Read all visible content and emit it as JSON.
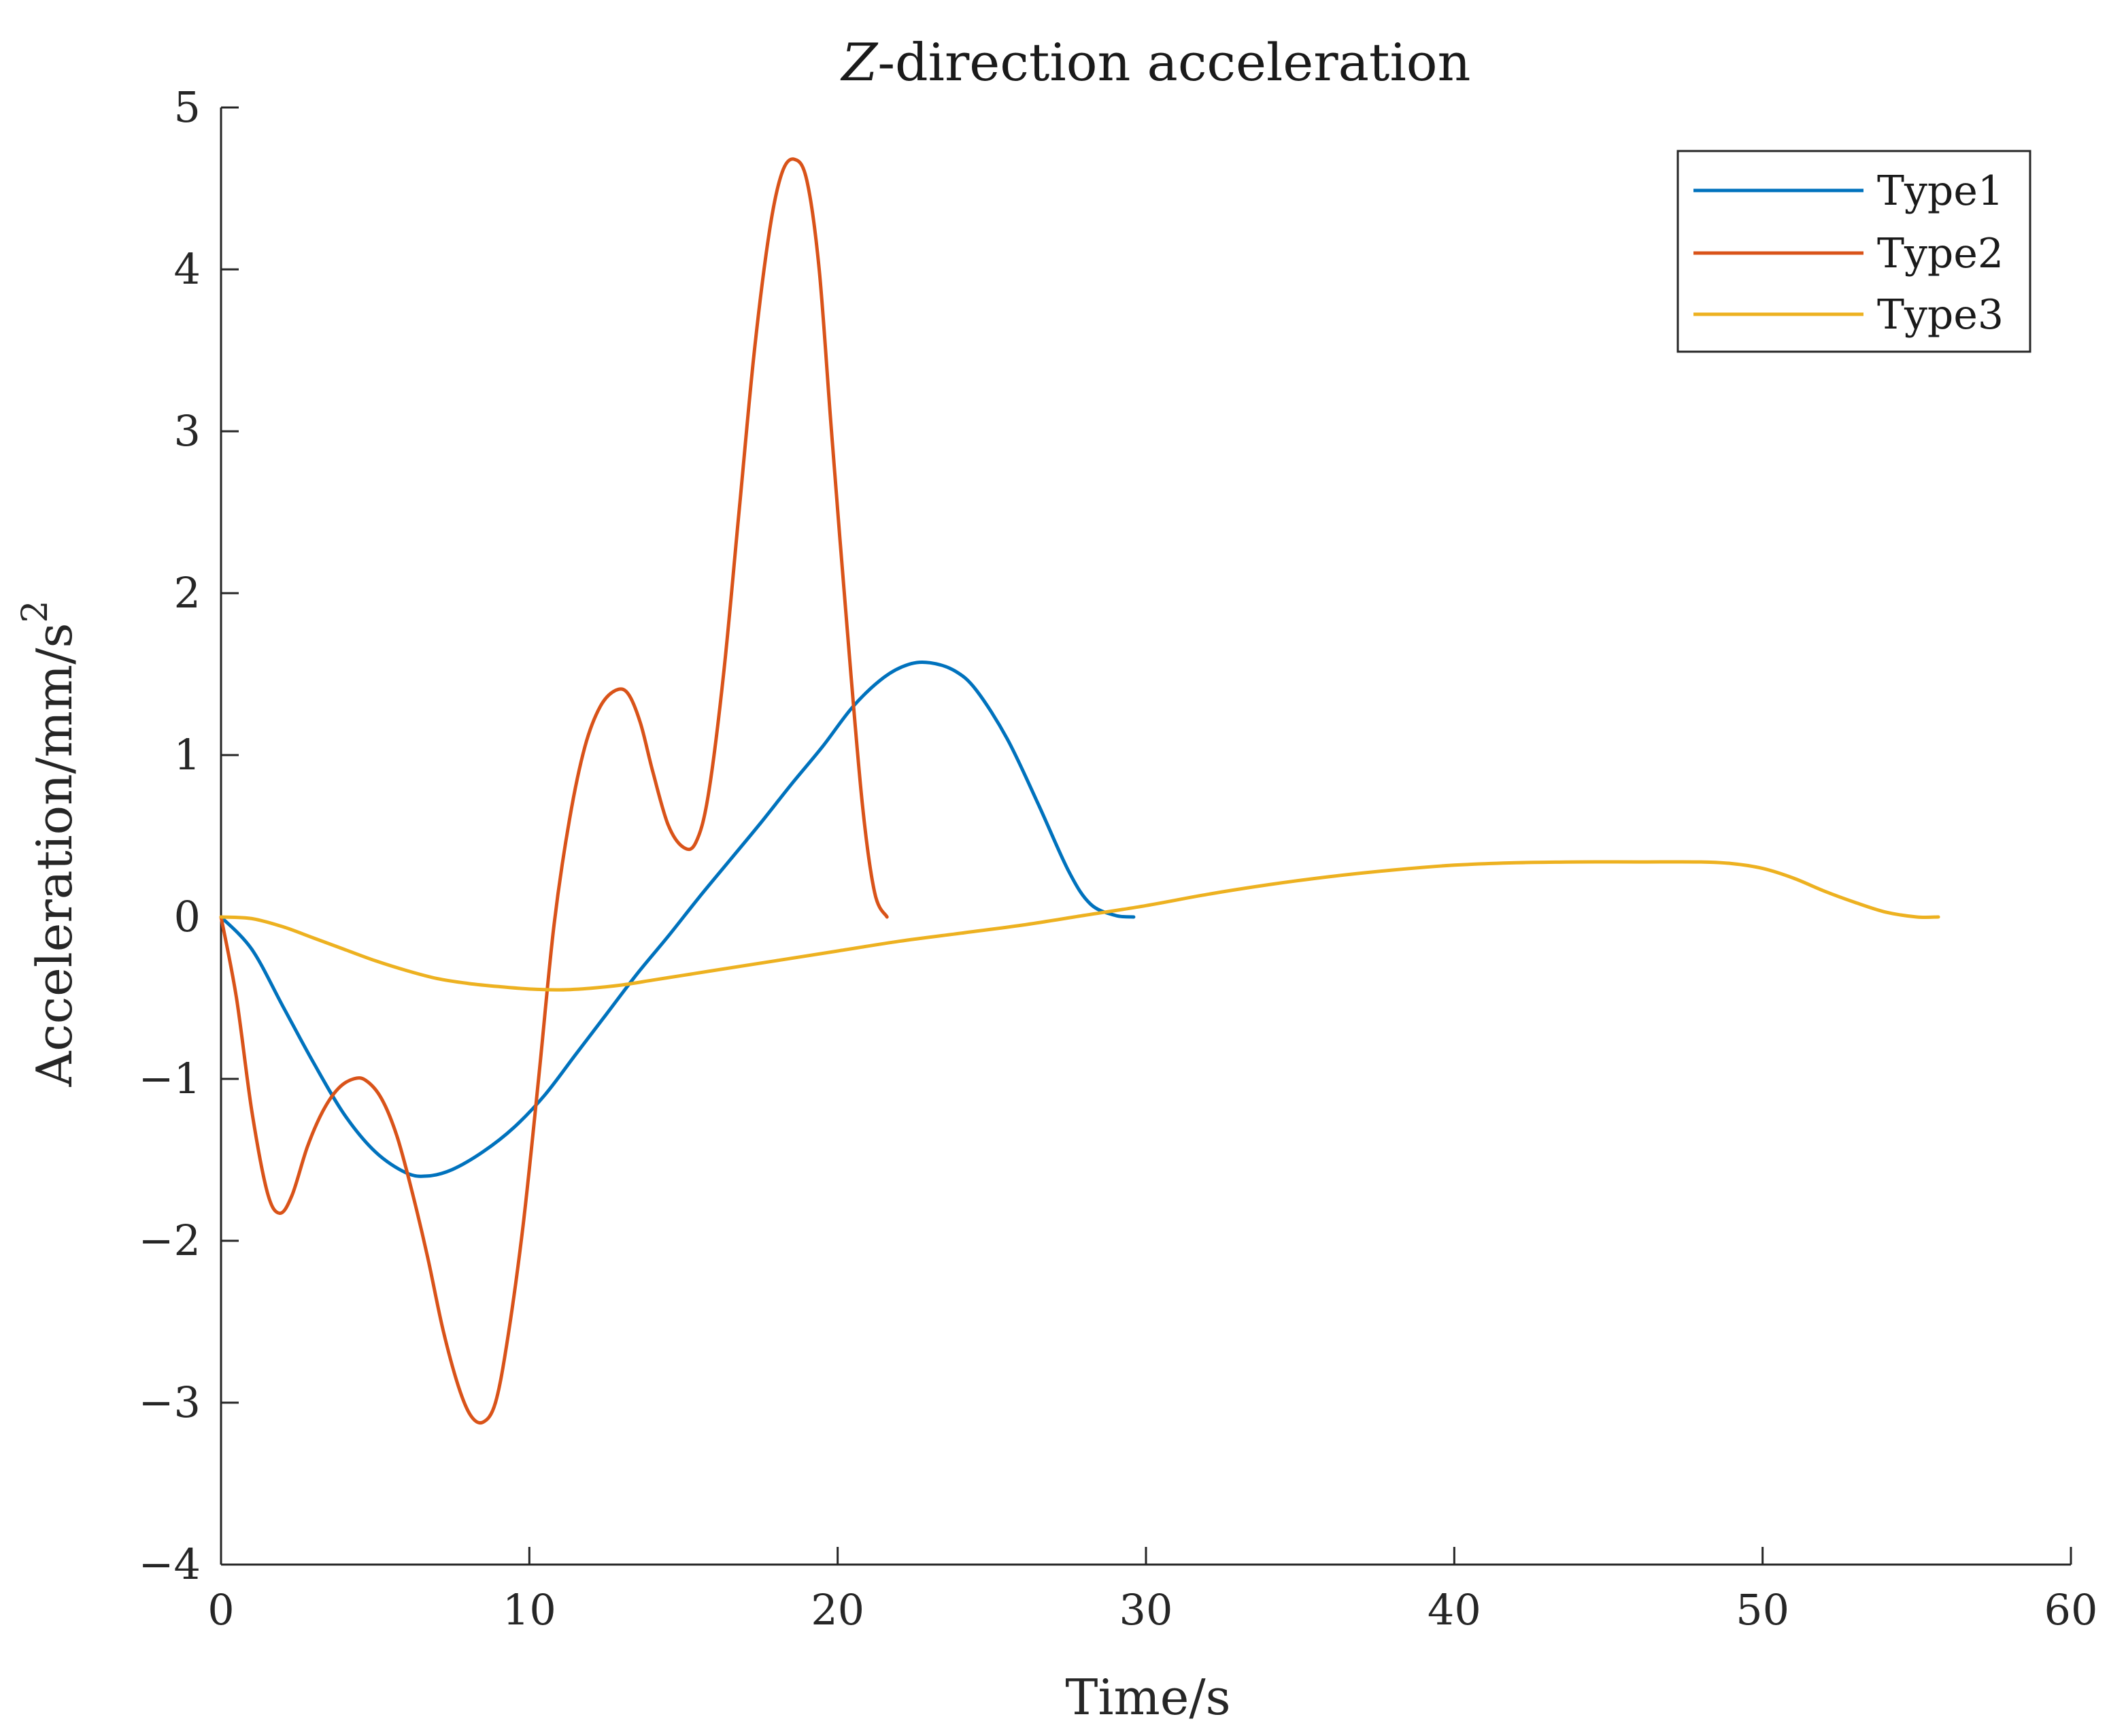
{
  "chart_data": {
    "type": "line",
    "title": "Z-direction acceleration",
    "title_italic_part": "Z",
    "title_rest": "-direction acceleration",
    "xlabel": "Time/s",
    "ylabel": "Acceleration/mm/s",
    "ylabel_superscript": "2",
    "xlim": [
      0,
      60
    ],
    "ylim": [
      -4,
      5
    ],
    "xticks": [
      0,
      10,
      20,
      30,
      40,
      50,
      60
    ],
    "yticks": [
      -4,
      -3,
      -2,
      -1,
      0,
      1,
      2,
      3,
      4,
      5
    ],
    "xtick_labels": [
      "0",
      "10",
      "20",
      "30",
      "40",
      "50",
      "60"
    ],
    "ytick_labels": [
      "−4",
      "−3",
      "−2",
      "−1",
      "0",
      "1",
      "2",
      "3",
      "4",
      "5"
    ],
    "grid": false,
    "legend_position": "top-right",
    "series": [
      {
        "name": "Type1",
        "color": "#0072BD",
        "x": [
          0,
          1,
          2,
          3,
          4,
          5,
          6,
          6.7,
          7.5,
          8.5,
          9.5,
          10.5,
          11.5,
          12.5,
          13.5,
          14.5,
          15.5,
          16.5,
          17.5,
          18.5,
          19.5,
          20.5,
          21.5,
          22.3,
          23,
          23.8,
          24.5,
          25.5,
          26.5,
          27.5,
          28.2,
          29,
          29.6
        ],
        "y": [
          0,
          -0.2,
          -0.55,
          -0.9,
          -1.22,
          -1.45,
          -1.58,
          -1.6,
          -1.56,
          -1.45,
          -1.3,
          -1.1,
          -0.85,
          -0.6,
          -0.35,
          -0.12,
          0.12,
          0.35,
          0.58,
          0.82,
          1.05,
          1.3,
          1.48,
          1.56,
          1.57,
          1.52,
          1.4,
          1.1,
          0.7,
          0.28,
          0.08,
          0.01,
          0
        ]
      },
      {
        "name": "Type2",
        "color": "#D95319",
        "x": [
          0,
          0.5,
          1,
          1.5,
          1.9,
          2.3,
          2.8,
          3.3,
          3.8,
          4.3,
          4.7,
          5.2,
          5.7,
          6.2,
          6.7,
          7.2,
          7.7,
          8.1,
          8.5,
          8.9,
          9.3,
          9.8,
          10.3,
          10.8,
          11.3,
          11.8,
          12.3,
          12.8,
          13.2,
          13.6,
          14,
          14.5,
          15,
          15.4,
          15.8,
          16.3,
          16.8,
          17.3,
          17.8,
          18.2,
          18.6,
          19,
          19.4,
          19.8,
          20.3,
          20.8,
          21.2,
          21.6
        ],
        "y": [
          0,
          -0.5,
          -1.2,
          -1.7,
          -1.83,
          -1.72,
          -1.42,
          -1.2,
          -1.06,
          -1.0,
          -1.01,
          -1.12,
          -1.35,
          -1.7,
          -2.1,
          -2.55,
          -2.9,
          -3.08,
          -3.12,
          -3.0,
          -2.6,
          -1.9,
          -1.0,
          -0.05,
          0.6,
          1.05,
          1.3,
          1.4,
          1.38,
          1.2,
          0.9,
          0.57,
          0.43,
          0.46,
          0.75,
          1.5,
          2.5,
          3.5,
          4.25,
          4.6,
          4.68,
          4.55,
          4.0,
          3.0,
          1.8,
          0.7,
          0.15,
          0
        ]
      },
      {
        "name": "Type3",
        "color": "#EDB120",
        "x": [
          0,
          1,
          2,
          3,
          4,
          5,
          6,
          7,
          8,
          9,
          10,
          11,
          12,
          13,
          14,
          15,
          16,
          18,
          20,
          22,
          24,
          26,
          28,
          30,
          32,
          34,
          36,
          38,
          40,
          42,
          44,
          46,
          48,
          49,
          50,
          51,
          52,
          53,
          54,
          55,
          55.7
        ],
        "y": [
          0,
          -0.01,
          -0.06,
          -0.13,
          -0.2,
          -0.27,
          -0.33,
          -0.38,
          -0.41,
          -0.43,
          -0.445,
          -0.45,
          -0.44,
          -0.42,
          -0.39,
          -0.36,
          -0.33,
          -0.27,
          -0.21,
          -0.15,
          -0.1,
          -0.05,
          0.01,
          0.07,
          0.14,
          0.2,
          0.25,
          0.29,
          0.32,
          0.335,
          0.34,
          0.34,
          0.34,
          0.33,
          0.3,
          0.24,
          0.16,
          0.09,
          0.03,
          0.0,
          0
        ]
      }
    ]
  }
}
